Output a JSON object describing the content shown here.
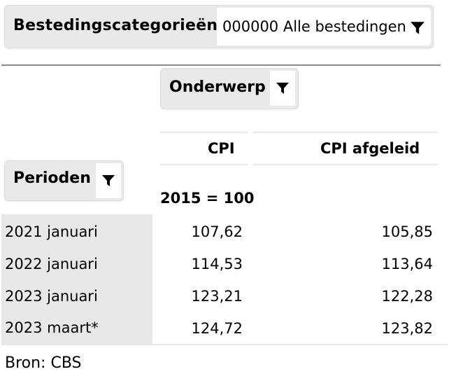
{
  "filters": {
    "category_label": "Bestedingscategorieën",
    "category_value": "000000 Alle bestedingen",
    "subject_label": "Onderwerp",
    "periods_label": "Perioden"
  },
  "icons": {
    "filter": "filter-icon"
  },
  "table": {
    "columns": [
      "CPI",
      "CPI afgeleid"
    ],
    "unit_row": "2015 = 100",
    "rows": [
      {
        "period": "2021 januari",
        "values": [
          "107,62",
          "105,85"
        ]
      },
      {
        "period": "2022 januari",
        "values": [
          "114,53",
          "113,64"
        ]
      },
      {
        "period": "2023 januari",
        "values": [
          "123,21",
          "122,28"
        ]
      },
      {
        "period": "2023 maart*",
        "values": [
          "124,72",
          "123,82"
        ]
      }
    ]
  },
  "source": "Bron: CBS"
}
